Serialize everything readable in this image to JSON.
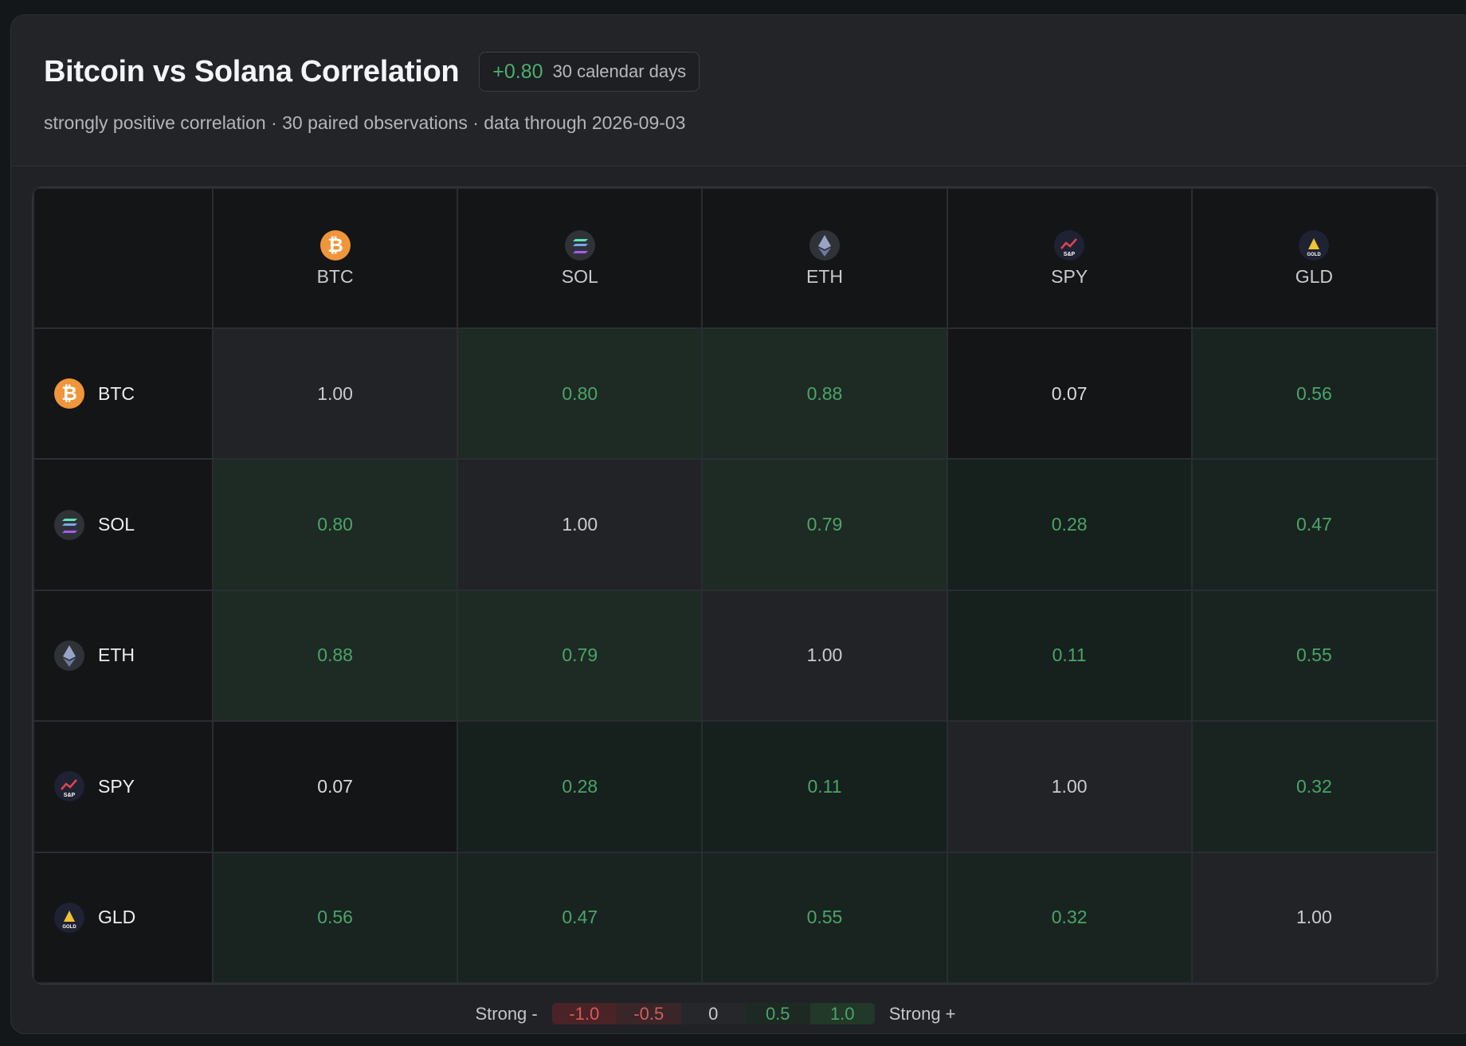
{
  "header": {
    "title": "Bitcoin vs Solana Correlation",
    "badge_value": "+0.80",
    "badge_period": "30 calendar days",
    "subtitle": "strongly positive correlation · 30 paired observations · data through 2026-09-03"
  },
  "assets": [
    {
      "symbol": "BTC",
      "icon": "bitcoin-icon",
      "color": "#f0953a"
    },
    {
      "symbol": "SOL",
      "icon": "solana-icon",
      "color": "#2f3338"
    },
    {
      "symbol": "ETH",
      "icon": "ethereum-icon",
      "color": "#2f3338"
    },
    {
      "symbol": "SPY",
      "icon": "sp500-icon",
      "color": "#1f2233"
    },
    {
      "symbol": "GLD",
      "icon": "gold-icon",
      "color": "#1f2233"
    }
  ],
  "matrix": [
    [
      "1.00",
      "0.80",
      "0.88",
      "0.07",
      "0.56"
    ],
    [
      "0.80",
      "1.00",
      "0.79",
      "0.28",
      "0.47"
    ],
    [
      "0.88",
      "0.79",
      "1.00",
      "0.11",
      "0.55"
    ],
    [
      "0.07",
      "0.28",
      "0.11",
      "1.00",
      "0.32"
    ],
    [
      "0.56",
      "0.47",
      "0.55",
      "0.32",
      "1.00"
    ]
  ],
  "legend": {
    "left_label": "Strong -",
    "right_label": "Strong +",
    "steps": [
      "-1.0",
      "-0.5",
      "0",
      "0.5",
      "1.0"
    ]
  },
  "colors": {
    "positive": "#4aa46a",
    "negative": "#d9575a",
    "background": "#202226"
  }
}
